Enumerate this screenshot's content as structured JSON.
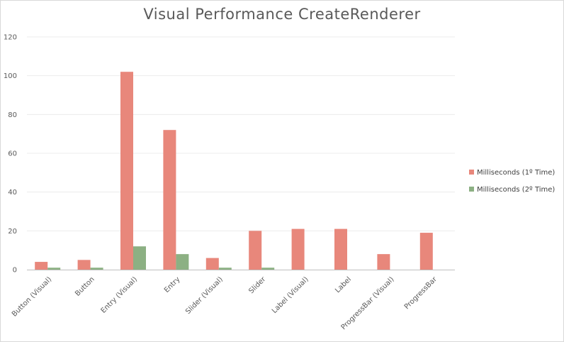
{
  "chart_data": {
    "type": "bar",
    "title": "Visual Performance CreateRenderer",
    "xlabel": "",
    "ylabel": "",
    "ylim": [
      0,
      120
    ],
    "yticks": [
      0,
      20,
      40,
      60,
      80,
      100,
      120
    ],
    "grid": true,
    "legend_position": "right",
    "categories": [
      "Button (Visual)",
      "Button",
      "Entry (Visual)",
      "Entry",
      "Slider (Visual)",
      "Slider",
      "Label (Visual)",
      "Label",
      "ProgressBar (Visual)",
      "ProgressBar"
    ],
    "series": [
      {
        "name": "Milliseconds (1º Time)",
        "color": "#e8877b",
        "values": [
          4,
          5,
          102,
          72,
          6,
          20,
          21,
          21,
          8,
          19
        ]
      },
      {
        "name": "Milliseconds (2º Time)",
        "color": "#8cb083",
        "values": [
          1,
          1,
          12,
          8,
          1,
          1,
          0,
          0,
          0,
          0
        ]
      }
    ]
  }
}
